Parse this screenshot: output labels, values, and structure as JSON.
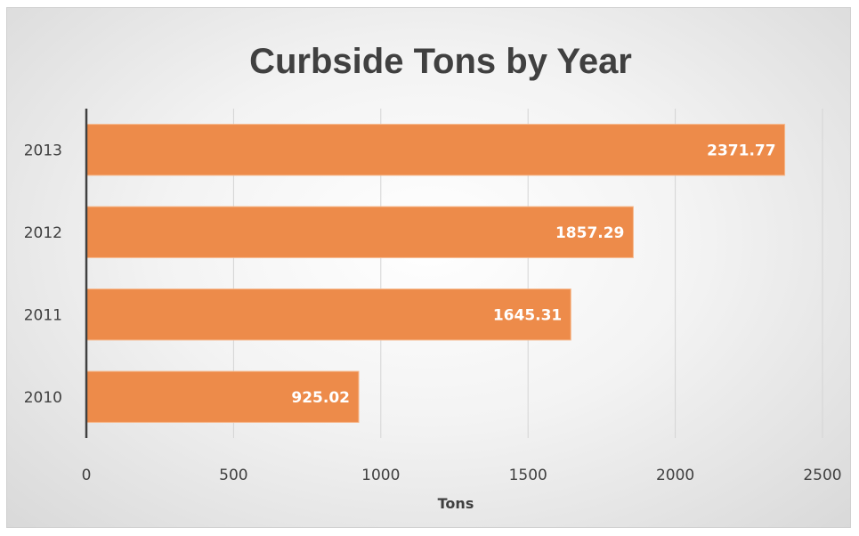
{
  "chart_data": {
    "type": "bar",
    "orientation": "horizontal",
    "title": "Curbside Tons by Year",
    "xlabel": "Tons",
    "ylabel": "",
    "categories": [
      "2010",
      "2011",
      "2012",
      "2013"
    ],
    "values": [
      925.02,
      1645.31,
      1857.29,
      2371.77
    ],
    "data_labels": [
      "925.02",
      "1645.31",
      "1857.29",
      "2371.77"
    ],
    "xlim": [
      0,
      2500
    ],
    "x_ticks": [
      0,
      500,
      1000,
      1500,
      2000,
      2500
    ],
    "x_tick_labels": [
      "0",
      "500",
      "1000",
      "1500",
      "2000",
      "2500"
    ],
    "grid": "vertical",
    "legend": "none",
    "bar_color": "#ED8B4A",
    "label_color": "#FFFFFF"
  }
}
